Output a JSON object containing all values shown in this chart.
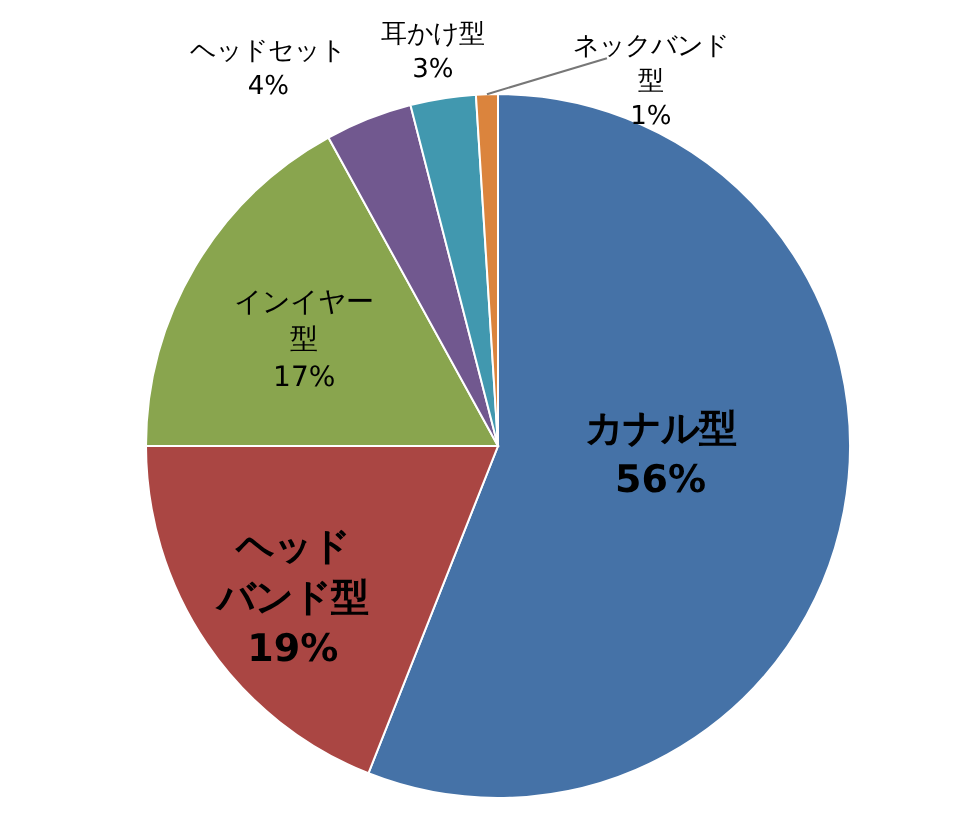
{
  "chart_data": {
    "type": "pie",
    "categories": [
      "カナル型",
      "ヘッドバンド型",
      "インイヤー型",
      "ヘッドセット",
      "耳かけ型",
      "ネックバンド型"
    ],
    "values": [
      56,
      19,
      17,
      4,
      3,
      1
    ],
    "colors": [
      "#4572a7",
      "#aa4643",
      "#89a54e",
      "#71588f",
      "#4198af",
      "#db843d"
    ],
    "value_labels": [
      "56%",
      "19%",
      "17%",
      "4%",
      "3%",
      "1%"
    ]
  }
}
